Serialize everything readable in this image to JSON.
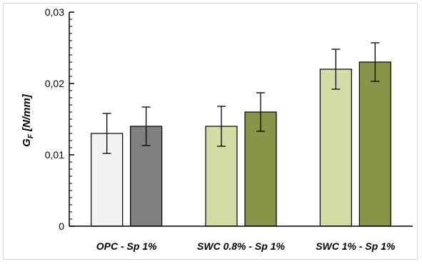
{
  "chart_data": {
    "type": "bar",
    "categories": [
      "OPC - Sp 1%",
      "SWC 0.8% - Sp 1%",
      "SWC 1% - Sp 1%"
    ],
    "series": [
      {
        "values": [
          0.013,
          0.014,
          0.022
        ],
        "errors": [
          0.0028,
          0.0028,
          0.0028
        ],
        "colors": [
          "#f2f2f2",
          "#d2dda6",
          "#d2dda6"
        ]
      },
      {
        "values": [
          0.014,
          0.016,
          0.023
        ],
        "errors": [
          0.0027,
          0.0027,
          0.0027
        ],
        "colors": [
          "#808080",
          "#8a9448",
          "#8a9448"
        ]
      }
    ],
    "ylabel_main": "G",
    "ylabel_sub": "F",
    "ylabel_unit": " [N/mm]",
    "ylim": [
      0,
      0.03
    ],
    "yticks": [
      0,
      0.01,
      0.02,
      0.03
    ],
    "ytick_labels": [
      "0",
      "0,01",
      "0,02",
      "0,03"
    ],
    "grid": false,
    "legend": "none"
  }
}
